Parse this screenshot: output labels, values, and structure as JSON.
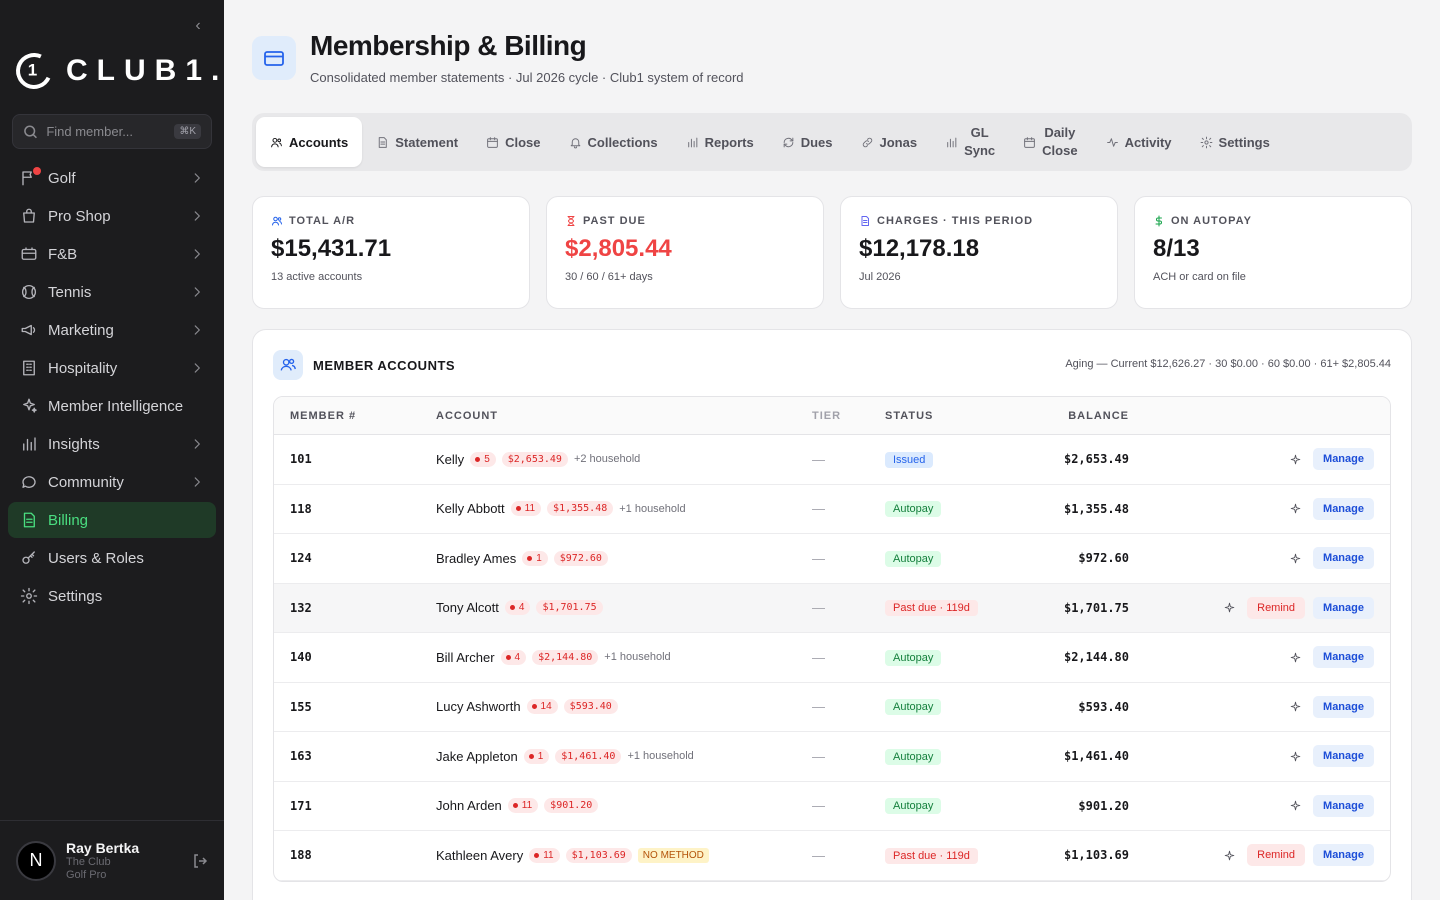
{
  "sidebar": {
    "logo_mark": "1",
    "logo_text": "CLUB1.",
    "search_placeholder": "Find member...",
    "search_shortcut": "⌘K",
    "items": [
      {
        "label": "Golf",
        "icon": "flag-icon",
        "chevron": true,
        "badge": true
      },
      {
        "label": "Pro Shop",
        "icon": "shopping-bag-icon",
        "chevron": true
      },
      {
        "label": "F&B",
        "icon": "utensils-icon",
        "chevron": true
      },
      {
        "label": "Tennis",
        "icon": "tennis-ball-icon",
        "chevron": true
      },
      {
        "label": "Marketing",
        "icon": "megaphone-icon",
        "chevron": true
      },
      {
        "label": "Hospitality",
        "icon": "building-icon",
        "chevron": true
      },
      {
        "label": "Member Intelligence",
        "icon": "sparkles-icon",
        "chevron": false
      },
      {
        "label": "Insights",
        "icon": "bar-chart-icon",
        "chevron": true
      },
      {
        "label": "Community",
        "icon": "chat-bubble-icon",
        "chevron": true
      },
      {
        "label": "Billing",
        "icon": "document-icon",
        "chevron": false,
        "active": true
      },
      {
        "label": "Users & Roles",
        "icon": "key-icon",
        "chevron": false
      },
      {
        "label": "Settings",
        "icon": "gear-icon",
        "chevron": false
      }
    ],
    "user": {
      "initial": "N",
      "name": "Ray Bertka",
      "club": "The Club",
      "role": "Golf Pro"
    }
  },
  "header": {
    "title": "Membership & Billing",
    "subtitle": "Consolidated member statements · Jul 2026 cycle · Club1 system of record"
  },
  "tabs": [
    {
      "label": "Accounts",
      "icon": "users-icon",
      "active": true
    },
    {
      "label": "Statement",
      "icon": "document-icon"
    },
    {
      "label": "Close",
      "icon": "calendar-icon"
    },
    {
      "label": "Collections",
      "icon": "bell-icon"
    },
    {
      "label": "Reports",
      "icon": "bar-chart-icon"
    },
    {
      "label": "Dues",
      "icon": "refresh-icon"
    },
    {
      "label": "Jonas",
      "icon": "link-icon"
    },
    {
      "label": "GL\nSync",
      "icon": "bar-chart-icon"
    },
    {
      "label": "Daily\nClose",
      "icon": "calendar-icon"
    },
    {
      "label": "Activity",
      "icon": "activity-icon"
    },
    {
      "label": "Settings",
      "icon": "gear-icon"
    }
  ],
  "cards": [
    {
      "label": "TOTAL A/R",
      "value": "$15,431.71",
      "sub": "13 active accounts",
      "icon": "users-icon",
      "color": "#2563eb",
      "red": false
    },
    {
      "label": "PAST DUE",
      "value": "$2,805.44",
      "sub": "30 / 60 / 61+ days",
      "icon": "hourglass-icon",
      "color": "#ef4444",
      "red": true
    },
    {
      "label": "CHARGES · THIS PERIOD",
      "value": "$12,178.18",
      "sub": "Jul 2026",
      "icon": "document-icon",
      "color": "#6366f1",
      "red": false
    },
    {
      "label": "ON AUTOPAY",
      "value": "8/13",
      "sub": "ACH or card on file",
      "icon": "dollar-icon",
      "color": "#16a34a",
      "red": false
    }
  ],
  "panel": {
    "title": "MEMBER ACCOUNTS",
    "aging": "Aging — Current $12,626.27 · 30 $0.00 · 60 $0.00 · 61+ $2,805.44",
    "columns": {
      "member": "MEMBER #",
      "account": "ACCOUNT",
      "tier": "TIER",
      "status": "STATUS",
      "balance": "BALANCE"
    },
    "remind_label": "Remind",
    "manage_label": "Manage",
    "rows": [
      {
        "num": "101",
        "name": "Kelly",
        "count": "5",
        "amt": "$2,653.49",
        "household": "+2 household",
        "tier": "—",
        "status": "Issued",
        "status_type": "issued",
        "balance": "$2,653.49",
        "remind": false
      },
      {
        "num": "118",
        "name": "Kelly Abbott",
        "count": "11",
        "amt": "$1,355.48",
        "household": "+1 household",
        "tier": "—",
        "status": "Autopay",
        "status_type": "autopay",
        "balance": "$1,355.48",
        "remind": false
      },
      {
        "num": "124",
        "name": "Bradley Ames",
        "count": "1",
        "amt": "$972.60",
        "household": "",
        "tier": "—",
        "status": "Autopay",
        "status_type": "autopay",
        "balance": "$972.60",
        "remind": false
      },
      {
        "num": "132",
        "name": "Tony Alcott",
        "count": "4",
        "amt": "$1,701.75",
        "household": "",
        "tier": "—",
        "status": "Past due · 119d",
        "status_type": "pastdue",
        "balance": "$1,701.75",
        "remind": true,
        "highlight": true
      },
      {
        "num": "140",
        "name": "Bill Archer",
        "count": "4",
        "amt": "$2,144.80",
        "household": "+1 household",
        "tier": "—",
        "status": "Autopay",
        "status_type": "autopay",
        "balance": "$2,144.80",
        "remind": false
      },
      {
        "num": "155",
        "name": "Lucy Ashworth",
        "count": "14",
        "amt": "$593.40",
        "household": "",
        "tier": "—",
        "status": "Autopay",
        "status_type": "autopay",
        "balance": "$593.40",
        "remind": false
      },
      {
        "num": "163",
        "name": "Jake Appleton",
        "count": "1",
        "amt": "$1,461.40",
        "household": "+1 household",
        "tier": "—",
        "status": "Autopay",
        "status_type": "autopay",
        "balance": "$1,461.40",
        "remind": false
      },
      {
        "num": "171",
        "name": "John Arden",
        "count": "11",
        "amt": "$901.20",
        "household": "",
        "tier": "—",
        "status": "Autopay",
        "status_type": "autopay",
        "balance": "$901.20",
        "remind": false
      },
      {
        "num": "188",
        "name": "Kathleen Avery",
        "count": "11",
        "amt": "$1,103.69",
        "household": "",
        "nomethod": "NO METHOD",
        "tier": "—",
        "status": "Past due · 119d",
        "status_type": "pastdue",
        "balance": "$1,103.69",
        "remind": true
      }
    ]
  }
}
